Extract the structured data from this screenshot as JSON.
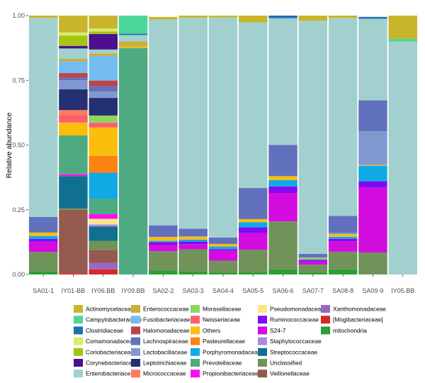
{
  "chart_data": {
    "type": "bar",
    "stacked": true,
    "ylabel": "Relative abundance",
    "xlabel": "",
    "ylim": [
      0,
      1
    ],
    "yticks": [
      "0.00",
      "0.25",
      "0.50",
      "0.75",
      "1.00"
    ],
    "grid": false,
    "legend_position": "bottom",
    "categories": [
      "SA01-1",
      "IY01-BB",
      "IY06.BB",
      "IY09.BB",
      "SA02-2",
      "SA03-3",
      "SA04-4",
      "SA05-5",
      "SA06-6",
      "SA07-7",
      "SA08-8",
      "SA09-9",
      "IY05.BB"
    ],
    "legend": [
      {
        "name": "Actinomycetaceae",
        "color": "#c9b52b"
      },
      {
        "name": "Campylobacteraceae",
        "color": "#4bd69a"
      },
      {
        "name": "Clostridiaceae",
        "color": "#1f6fb0"
      },
      {
        "name": "Comamonadaceae",
        "color": "#d8ec6e"
      },
      {
        "name": "Coriobacteriaceae",
        "color": "#a2c413"
      },
      {
        "name": "Corynebacteriaceae",
        "color": "#4b0f8f"
      },
      {
        "name": "Enterobacteriaceae",
        "color": "#a2d0cf"
      },
      {
        "name": "Enterococcaceae",
        "color": "#c8ae3a"
      },
      {
        "name": "Fusobacteriaceae",
        "color": "#74bdf0"
      },
      {
        "name": "Halomonadaceae",
        "color": "#be444c"
      },
      {
        "name": "Lachnospiraceae",
        "color": "#6271bd"
      },
      {
        "name": "Lactobacillaceae",
        "color": "#8098d0"
      },
      {
        "name": "Leptotrichiaceae",
        "color": "#243071"
      },
      {
        "name": "Micrococcaceae",
        "color": "#fc7b5b"
      },
      {
        "name": "Moraxellaceae",
        "color": "#8dd55e"
      },
      {
        "name": "Neisseriaceae",
        "color": "#fc5e6e"
      },
      {
        "name": "Others",
        "color": "#fbbe0c"
      },
      {
        "name": "Pasteurellaceae",
        "color": "#fc8312"
      },
      {
        "name": "Porphyromonadaceae",
        "color": "#10aae6"
      },
      {
        "name": "Prevotellaceae",
        "color": "#4eaa80"
      },
      {
        "name": "Propionibacteriaceae",
        "color": "#fa0ff0"
      },
      {
        "name": "Pseudomonadaceae",
        "color": "#fce58a"
      },
      {
        "name": "Ruminococcaceae",
        "color": "#8309f2"
      },
      {
        "name": "S24-7",
        "color": "#d30ce0"
      },
      {
        "name": "Staphylococcaceae",
        "color": "#a98ae0"
      },
      {
        "name": "Streptococcaceae",
        "color": "#0f7090"
      },
      {
        "name": "Unclassified",
        "color": "#6f9358"
      },
      {
        "name": "Veillonellaceae",
        "color": "#94594f"
      },
      {
        "name": "Xanthomonadaceae",
        "color": "#9a68c2"
      },
      {
        "name": "[Mogibacteriaceae]",
        "color": "#d7292c"
      },
      {
        "name": "mitochondria",
        "color": "#2c9e35"
      }
    ],
    "series": [
      {
        "name": "mitochondria",
        "values": [
          0.012,
          0,
          0,
          0,
          0.015,
          0.012,
          0.008,
          0.01,
          0.02,
          0.008,
          0.02,
          0,
          0
        ]
      },
      {
        "name": "[Mogibacteriaceae]",
        "values": [
          0,
          0.005,
          0.02,
          0,
          0,
          0,
          0,
          0,
          0,
          0,
          0,
          0,
          0
        ]
      },
      {
        "name": "Xanthomonadaceae",
        "values": [
          0,
          0,
          0.025,
          0,
          0,
          0,
          0,
          0,
          0,
          0,
          0,
          0,
          0
        ]
      },
      {
        "name": "Veillonellaceae",
        "values": [
          0,
          0.245,
          0.05,
          0,
          0,
          0,
          0,
          0,
          0,
          0,
          0,
          0,
          0
        ]
      },
      {
        "name": "Unclassified",
        "values": [
          0.075,
          0.005,
          0.035,
          0,
          0.075,
          0.085,
          0.045,
          0.085,
          0.185,
          0.03,
          0.068,
          0.085,
          0
        ]
      },
      {
        "name": "Streptococcaceae",
        "values": [
          0,
          0.125,
          0.055,
          0,
          0,
          0,
          0,
          0,
          0,
          0,
          0,
          0,
          0
        ]
      },
      {
        "name": "Staphylococcaceae",
        "values": [
          0,
          0,
          0.008,
          0,
          0,
          0,
          0,
          0,
          0,
          0,
          0,
          0,
          0
        ]
      },
      {
        "name": "S24-7",
        "values": [
          0.04,
          0,
          0,
          0,
          0.025,
          0.02,
          0.04,
          0.065,
          0.11,
          0.012,
          0.04,
          0.25,
          0
        ]
      },
      {
        "name": "Ruminococcaceae",
        "values": [
          0.01,
          0,
          0,
          0,
          0.01,
          0.01,
          0.005,
          0.022,
          0.025,
          0.005,
          0.01,
          0.025,
          0
        ]
      },
      {
        "name": "Pseudomonadaceae",
        "values": [
          0,
          0,
          0.022,
          0,
          0,
          0,
          0,
          0,
          0,
          0,
          0,
          0,
          0
        ]
      },
      {
        "name": "Propionibacteriaceae",
        "values": [
          0,
          0.007,
          0.018,
          0,
          0,
          0,
          0,
          0,
          0,
          0,
          0,
          0,
          0
        ]
      },
      {
        "name": "Prevotellaceae",
        "values": [
          0,
          0.15,
          0.06,
          0.875,
          0,
          0,
          0,
          0,
          0,
          0,
          0,
          0,
          0
        ]
      },
      {
        "name": "Porphyromonadaceae",
        "values": [
          0.012,
          0,
          0.1,
          0,
          0.005,
          0.008,
          0.01,
          0.02,
          0.025,
          0.005,
          0.008,
          0.06,
          0
        ]
      },
      {
        "name": "Pasteurellaceae",
        "values": [
          0,
          0,
          0.065,
          0,
          0,
          0,
          0,
          0,
          0,
          0,
          0,
          0,
          0
        ]
      },
      {
        "name": "Others",
        "values": [
          0.013,
          0.05,
          0.11,
          0.005,
          0.015,
          0.012,
          0.01,
          0.012,
          0.015,
          0.005,
          0.01,
          0.003,
          0
        ]
      },
      {
        "name": "Neisseriaceae",
        "values": [
          0,
          0.028,
          0.018,
          0,
          0,
          0,
          0,
          0,
          0,
          0,
          0,
          0,
          0
        ]
      },
      {
        "name": "Moraxellaceae",
        "values": [
          0,
          0,
          0.028,
          0,
          0,
          0,
          0,
          0,
          0,
          0,
          0,
          0,
          0
        ]
      },
      {
        "name": "Micrococcaceae",
        "values": [
          0,
          0.02,
          0,
          0,
          0,
          0,
          0,
          0,
          0,
          0,
          0,
          0,
          0
        ]
      },
      {
        "name": "Leptotrichiaceae",
        "values": [
          0,
          0.08,
          0.068,
          0,
          0,
          0,
          0,
          0,
          0,
          0,
          0,
          0,
          0
        ]
      },
      {
        "name": "Lactobacillaceae",
        "values": [
          0,
          0.035,
          0.025,
          0,
          0,
          0,
          0,
          0,
          0,
          0,
          0.005,
          0.13,
          0
        ]
      },
      {
        "name": "Lachnospiraceae",
        "values": [
          0.06,
          0.01,
          0.02,
          0,
          0.045,
          0.03,
          0.025,
          0.12,
          0.12,
          0.015,
          0.065,
          0.12,
          0
        ]
      },
      {
        "name": "Halomonadaceae",
        "values": [
          0,
          0.018,
          0.022,
          0,
          0,
          0,
          0,
          0,
          0,
          0,
          0,
          0,
          0
        ]
      },
      {
        "name": "Fusobacteriaceae",
        "values": [
          0,
          0.045,
          0.095,
          0,
          0,
          0,
          0,
          0,
          0,
          0,
          0,
          0,
          0
        ]
      },
      {
        "name": "Enterococcaceae",
        "values": [
          0,
          0.01,
          0.01,
          0.02,
          0,
          0,
          0,
          0,
          0,
          0,
          0,
          0,
          0
        ]
      },
      {
        "name": "Enterobacteriaceae",
        "values": [
          0.77,
          0.04,
          0.015,
          0.025,
          0.795,
          0.815,
          0.85,
          0.64,
          0.49,
          0.9,
          0.765,
          0.315,
          0.9
        ]
      },
      {
        "name": "Corynebacteriaceae",
        "values": [
          0,
          0.01,
          0.06,
          0,
          0,
          0,
          0,
          0,
          0,
          0,
          0,
          0,
          0
        ]
      },
      {
        "name": "Coriobacteriaceae",
        "values": [
          0,
          0.04,
          0.01,
          0,
          0,
          0,
          0,
          0,
          0,
          0,
          0,
          0,
          0
        ]
      },
      {
        "name": "Comamonadaceae",
        "values": [
          0,
          0.012,
          0.011,
          0,
          0,
          0,
          0,
          0,
          0,
          0,
          0,
          0,
          0
        ]
      },
      {
        "name": "Clostridiaceae",
        "values": [
          0,
          0,
          0,
          0.005,
          0,
          0,
          0,
          0,
          0.01,
          0,
          0,
          0.007,
          0
        ]
      },
      {
        "name": "Campylobacteraceae",
        "values": [
          0,
          0,
          0,
          0.07,
          0,
          0,
          0,
          0,
          0,
          0,
          0,
          0,
          0.01
        ]
      },
      {
        "name": "Actinomycetaceae",
        "values": [
          0.008,
          0.065,
          0.05,
          0,
          0.01,
          0.008,
          0.007,
          0.026,
          0,
          0.02,
          0.009,
          0,
          0.09
        ]
      }
    ]
  }
}
